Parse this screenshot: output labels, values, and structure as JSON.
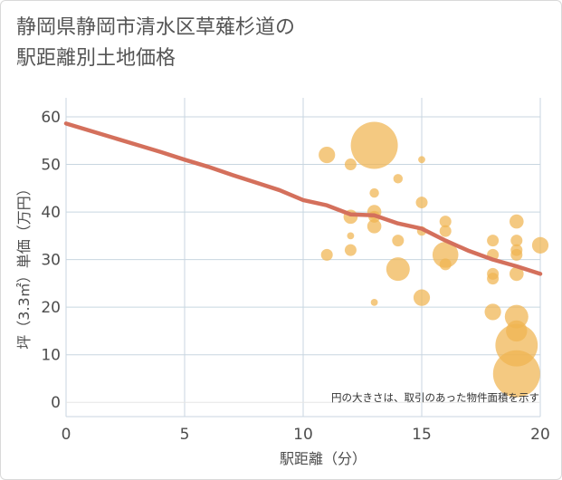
{
  "chart_data": {
    "type": "scatter",
    "title_line1": "静岡県静岡市清水区草薙杉道の",
    "title_line2": "駅距離別土地価格",
    "xlabel": "駅距離（分）",
    "ylabel": "坪（3.3㎡）単価（万円）",
    "annotation": "円の大きさは、取引のあった物件面積を示す",
    "xlim": [
      0,
      20
    ],
    "ylim": [
      -3,
      64
    ],
    "xticks": [
      0,
      5,
      10,
      15,
      20
    ],
    "yticks": [
      0,
      10,
      20,
      30,
      40,
      50,
      60
    ],
    "grid": true,
    "colors": {
      "bubble": "#f0b450",
      "trend": "#d4705c",
      "grid": "#c8d6e0",
      "zero_line": "#e6e6e6"
    },
    "trend_line": {
      "x": [
        0,
        1,
        2,
        3,
        4,
        5,
        6,
        7,
        8,
        9,
        10,
        11,
        12,
        13,
        14,
        15,
        16,
        17,
        18,
        19,
        20
      ],
      "y": [
        58.6,
        57.1,
        55.6,
        54.1,
        52.6,
        51.0,
        49.5,
        47.8,
        46.2,
        44.6,
        42.5,
        41.4,
        39.5,
        39.3,
        37.6,
        36.5,
        34.0,
        31.8,
        30.0,
        28.6,
        27.0
      ]
    },
    "bubbles": [
      {
        "x": 11,
        "y": 52,
        "size": 7
      },
      {
        "x": 11,
        "y": 31,
        "size": 5
      },
      {
        "x": 12,
        "y": 50,
        "size": 5
      },
      {
        "x": 12,
        "y": 39,
        "size": 6
      },
      {
        "x": 12,
        "y": 35,
        "size": 3
      },
      {
        "x": 12,
        "y": 32,
        "size": 5
      },
      {
        "x": 13,
        "y": 54,
        "size": 20
      },
      {
        "x": 13,
        "y": 44,
        "size": 4
      },
      {
        "x": 13,
        "y": 40,
        "size": 6
      },
      {
        "x": 13,
        "y": 39,
        "size": 5
      },
      {
        "x": 13,
        "y": 37,
        "size": 6
      },
      {
        "x": 13,
        "y": 21,
        "size": 3
      },
      {
        "x": 14,
        "y": 47,
        "size": 4
      },
      {
        "x": 14,
        "y": 34,
        "size": 5
      },
      {
        "x": 14,
        "y": 28,
        "size": 10
      },
      {
        "x": 15,
        "y": 51,
        "size": 3
      },
      {
        "x": 15,
        "y": 42,
        "size": 5
      },
      {
        "x": 15,
        "y": 36,
        "size": 4
      },
      {
        "x": 15,
        "y": 22,
        "size": 7
      },
      {
        "x": 16,
        "y": 38,
        "size": 5
      },
      {
        "x": 16,
        "y": 36,
        "size": 5
      },
      {
        "x": 16,
        "y": 31,
        "size": 11
      },
      {
        "x": 16,
        "y": 29,
        "size": 5
      },
      {
        "x": 18,
        "y": 34,
        "size": 5
      },
      {
        "x": 18,
        "y": 31,
        "size": 5
      },
      {
        "x": 18,
        "y": 27,
        "size": 5
      },
      {
        "x": 18,
        "y": 26,
        "size": 5
      },
      {
        "x": 18,
        "y": 19,
        "size": 7
      },
      {
        "x": 19,
        "y": 38,
        "size": 6
      },
      {
        "x": 19,
        "y": 34,
        "size": 5
      },
      {
        "x": 19,
        "y": 32,
        "size": 5
      },
      {
        "x": 19,
        "y": 31,
        "size": 5
      },
      {
        "x": 19,
        "y": 27,
        "size": 6
      },
      {
        "x": 19,
        "y": 18,
        "size": 10
      },
      {
        "x": 19,
        "y": 15,
        "size": 9
      },
      {
        "x": 19,
        "y": 12,
        "size": 18
      },
      {
        "x": 19,
        "y": 6,
        "size": 20
      },
      {
        "x": 20,
        "y": 33,
        "size": 7
      }
    ]
  }
}
